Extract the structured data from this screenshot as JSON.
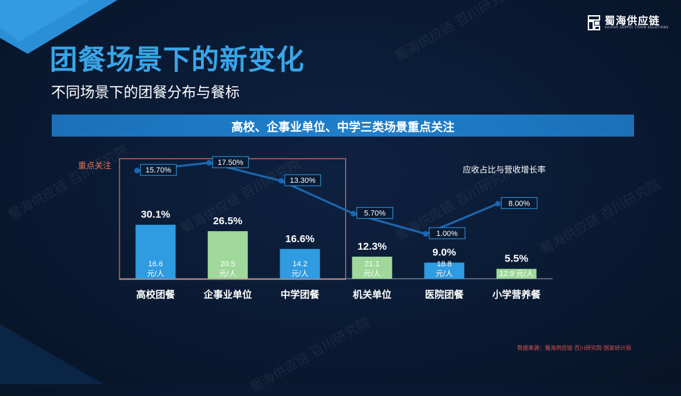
{
  "brand": {
    "logo_name": "蜀海供应链",
    "logo_sub": "SHUHAI SUPPLY CHAIN SOLUTIONS"
  },
  "title": "团餐场景下的新变化",
  "subtitle": "不同场景下的团餐分布与餐标",
  "banner": "高校、企事业单位、中学三类场景重点关注",
  "source": "数据来源：蜀海供应链·百川研究院·国家统计局",
  "watermarks": [
    "蜀海供应链 百川研究院",
    "蜀海供应链 百川研究院",
    "蜀海供应链 百川研究院",
    "蜀海供应链 百川研究院",
    "蜀海供应链 百川研究院",
    "蜀海供应链 百川研究院"
  ],
  "colors": {
    "blue_bar": "#2f9be0",
    "green_bar": "#9fd89a",
    "line": "#1d66b0",
    "focus_box": "#e2735a",
    "focus_label": "#e2735a",
    "title": "#3aa5e8"
  },
  "chart_data": {
    "type": "bar",
    "categories": [
      "高校团餐",
      "企事业单位",
      "中学团餐",
      "机关单位",
      "医院团餐",
      "小学营养餐"
    ],
    "series": [
      {
        "values": [
          30.1,
          26.5,
          16.6,
          12.3,
          9.0,
          5.5
        ],
        "value_labels": [
          "30.1%",
          "26.5%",
          "16.6%",
          "12.3%",
          "9.0%",
          "5.5%"
        ],
        "bar_colors": [
          "blue",
          "green",
          "blue",
          "green",
          "blue",
          "green"
        ]
      },
      {
        "name": "应收占比与营收增长率",
        "type": "line",
        "values": [
          15.7,
          17.5,
          13.3,
          5.7,
          1.0,
          8.0
        ],
        "value_labels": [
          "15.70%",
          "17.50%",
          "13.30%",
          "5.70%",
          "1.00%",
          "8.00%"
        ]
      }
    ],
    "meal_standard": [
      [
        "16.6",
        "元/人"
      ],
      [
        "20.5",
        "元/人"
      ],
      [
        "14.2",
        "元/人"
      ],
      [
        "21.1",
        "元/人"
      ],
      [
        "18.8",
        "元/人"
      ],
      [
        "12.9 元/人"
      ]
    ],
    "highlight": {
      "label": "重点关注",
      "categories": [
        "高校团餐",
        "企事业单位",
        "中学团餐"
      ]
    },
    "legend_position": "top-right",
    "grid": false
  }
}
